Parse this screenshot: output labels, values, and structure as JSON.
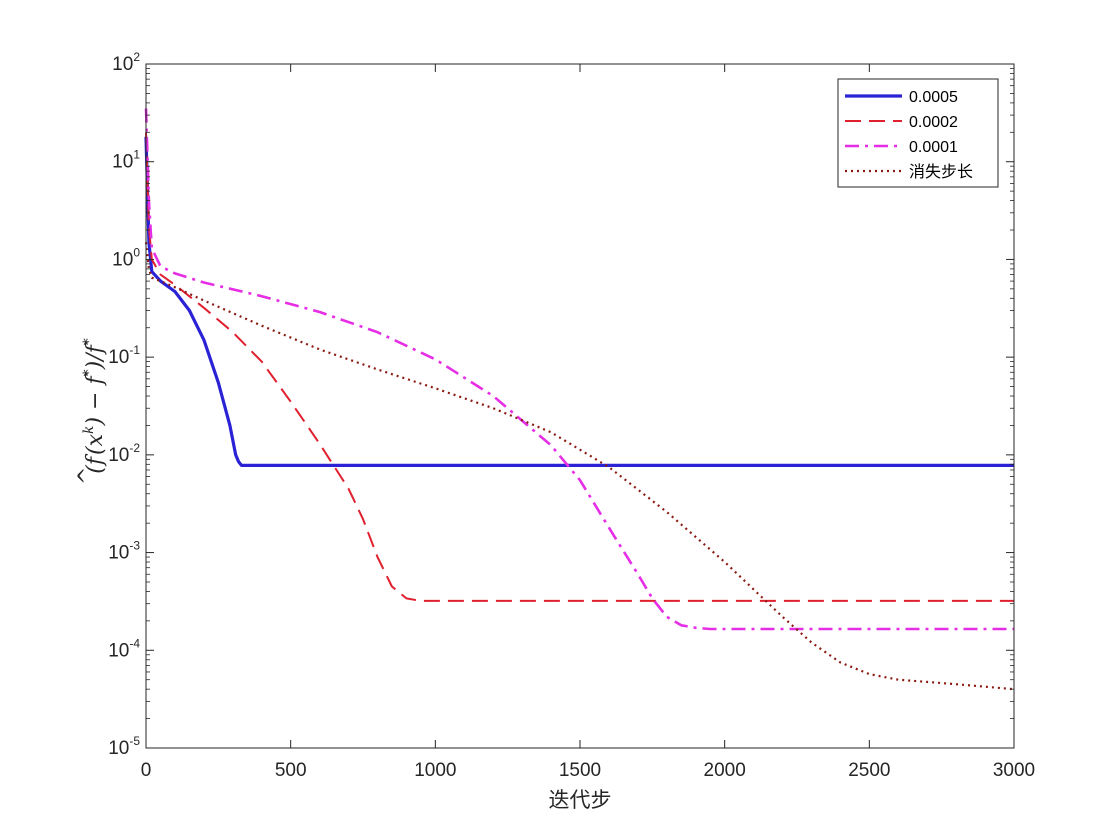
{
  "chart_data": {
    "type": "line",
    "title": "",
    "xlabel": "迭代步",
    "ylabel": "(f̂(x^k) − f*)/f*",
    "ylabel_parts": {
      "open": "(",
      "f": "f",
      "hat": "^",
      "paren_open": "(x",
      "k": "k",
      "paren_close": ")",
      "minus": " − f",
      "star1": "*",
      "close": ")/f",
      "star2": "*"
    },
    "xlim": [
      0,
      3000
    ],
    "ylim": [
      1e-05,
      100
    ],
    "yscale": "log",
    "grid": false,
    "legend_position": "top-right",
    "x_ticks": [
      0,
      500,
      1000,
      1500,
      2000,
      2500,
      3000
    ],
    "x_tick_labels": [
      "0",
      "500",
      "1000",
      "1500",
      "2000",
      "2500",
      "3000"
    ],
    "y_ticks": [
      1e-05,
      0.0001,
      0.001,
      0.01,
      0.1,
      1,
      10,
      100
    ],
    "y_tick_labels": [
      {
        "base": "10",
        "exp": "-5"
      },
      {
        "base": "10",
        "exp": "-4"
      },
      {
        "base": "10",
        "exp": "-3"
      },
      {
        "base": "10",
        "exp": "-2"
      },
      {
        "base": "10",
        "exp": "-1"
      },
      {
        "base": "10",
        "exp": "0"
      },
      {
        "base": "10",
        "exp": "1"
      },
      {
        "base": "10",
        "exp": "2"
      }
    ],
    "series": [
      {
        "name": "0.0005",
        "color": "#2b22d6",
        "style": "solid",
        "x": [
          0,
          10,
          20,
          50,
          100,
          150,
          200,
          250,
          290,
          310,
          320,
          330,
          500,
          1000,
          1500,
          2000,
          2500,
          3000
        ],
        "y": [
          18,
          1.5,
          0.75,
          0.6,
          0.47,
          0.3,
          0.15,
          0.055,
          0.02,
          0.01,
          0.0085,
          0.0078,
          0.0078,
          0.0078,
          0.0078,
          0.0078,
          0.0078,
          0.0078
        ]
      },
      {
        "name": "0.0002",
        "color": "#e0202f",
        "style": "dashed",
        "x": [
          0,
          10,
          20,
          50,
          100,
          200,
          300,
          400,
          500,
          600,
          700,
          750,
          800,
          850,
          900,
          950,
          1000,
          1100,
          1500,
          2000,
          2500,
          3000
        ],
        "y": [
          20,
          2.2,
          1.0,
          0.7,
          0.55,
          0.32,
          0.18,
          0.09,
          0.035,
          0.013,
          0.0045,
          0.0022,
          0.0009,
          0.00045,
          0.00034,
          0.00032,
          0.00032,
          0.00032,
          0.00032,
          0.00032,
          0.00032,
          0.00032
        ]
      },
      {
        "name": "0.0001",
        "color": "#e52ee5",
        "style": "dashdot",
        "x": [
          0,
          10,
          20,
          50,
          100,
          200,
          400,
          600,
          800,
          1000,
          1200,
          1400,
          1500,
          1600,
          1700,
          1750,
          1800,
          1850,
          1900,
          1950,
          2000,
          2500,
          3000
        ],
        "y": [
          35,
          4,
          1.3,
          0.85,
          0.72,
          0.58,
          0.42,
          0.29,
          0.18,
          0.095,
          0.04,
          0.0125,
          0.0055,
          0.0018,
          0.0006,
          0.00034,
          0.00022,
          0.00018,
          0.00017,
          0.000165,
          0.000165,
          0.000165,
          0.000165
        ]
      },
      {
        "name": "消失步长",
        "color": "#8b1a12",
        "style": "dotted",
        "x": [
          0,
          10,
          20,
          50,
          100,
          200,
          400,
          600,
          800,
          1000,
          1200,
          1400,
          1600,
          1800,
          2000,
          2100,
          2200,
          2300,
          2400,
          2500,
          2600,
          2800,
          3000
        ],
        "y": [
          1.5,
          0.8,
          0.65,
          0.6,
          0.52,
          0.38,
          0.21,
          0.12,
          0.075,
          0.048,
          0.03,
          0.017,
          0.0075,
          0.0026,
          0.0008,
          0.00042,
          0.00022,
          0.00012,
          7.5e-05,
          5.7e-05,
          5e-05,
          4.5e-05,
          4e-05
        ]
      }
    ]
  }
}
